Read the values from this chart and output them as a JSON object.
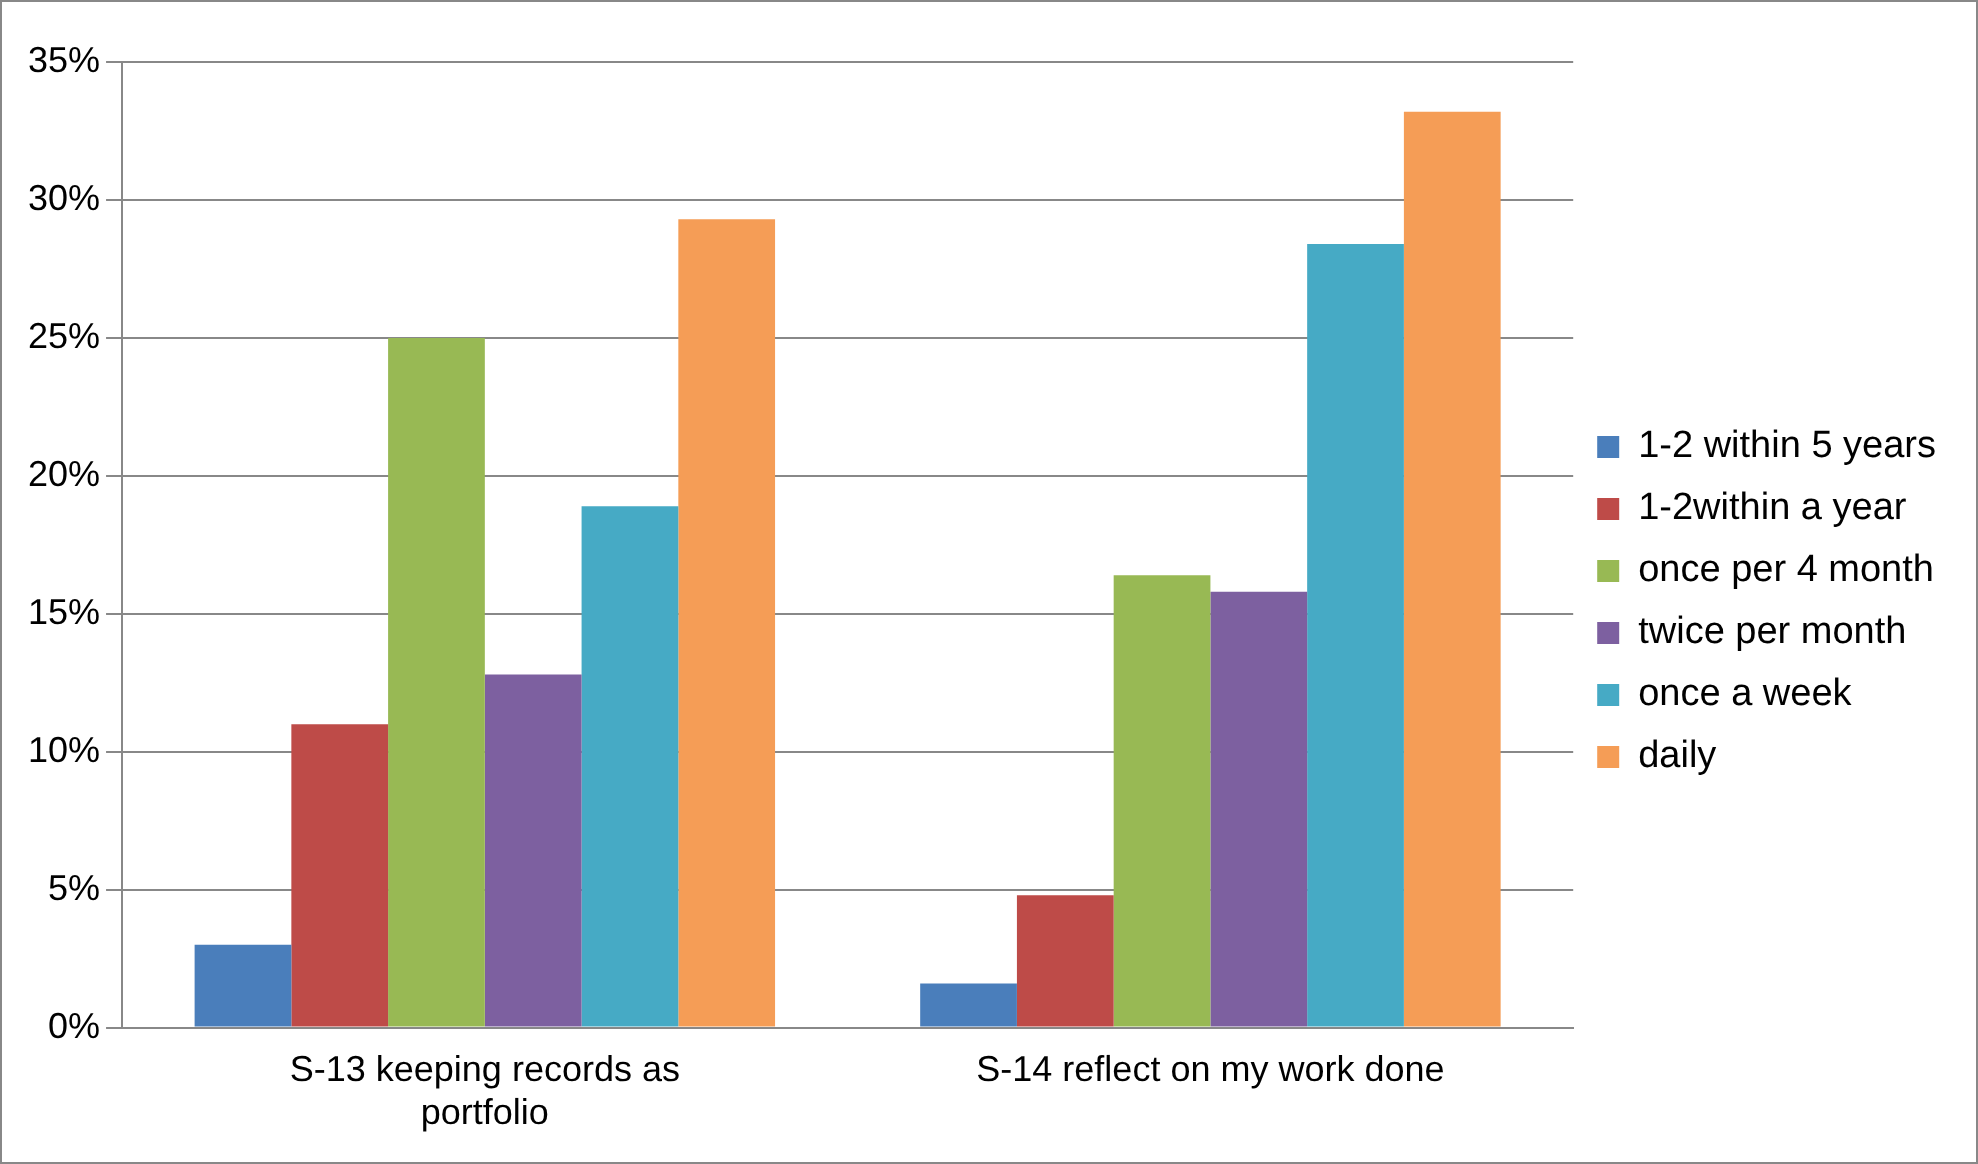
{
  "chart_data": {
    "type": "bar",
    "categories": [
      "S-13 keeping records as portfolio",
      "S-14 reflect on my work done"
    ],
    "series": [
      {
        "name": "1-2 within 5 years",
        "color": "#4a7ebb",
        "values": [
          3.0,
          1.6
        ]
      },
      {
        "name": "1-2within a year",
        "color": "#be4b48",
        "values": [
          11.0,
          4.8
        ]
      },
      {
        "name": "once per 4 month",
        "color": "#98b954",
        "values": [
          25.0,
          16.4
        ]
      },
      {
        "name": "twice per month",
        "color": "#7d60a0",
        "values": [
          12.8,
          15.8
        ]
      },
      {
        "name": "once a week",
        "color": "#46aac5",
        "values": [
          18.9,
          28.4
        ]
      },
      {
        "name": "daily",
        "color": "#f59d56",
        "values": [
          29.3,
          33.2
        ]
      }
    ],
    "ylim": [
      0,
      35
    ],
    "yticks": [
      {
        "value": 0,
        "label": "0%"
      },
      {
        "value": 5,
        "label": "5%"
      },
      {
        "value": 10,
        "label": "10%"
      },
      {
        "value": 15,
        "label": "15%"
      },
      {
        "value": 20,
        "label": "20%"
      },
      {
        "value": 25,
        "label": "25%"
      },
      {
        "value": 30,
        "label": "30%"
      },
      {
        "value": 35,
        "label": "35%"
      }
    ],
    "grid": "y",
    "legend": "right"
  }
}
